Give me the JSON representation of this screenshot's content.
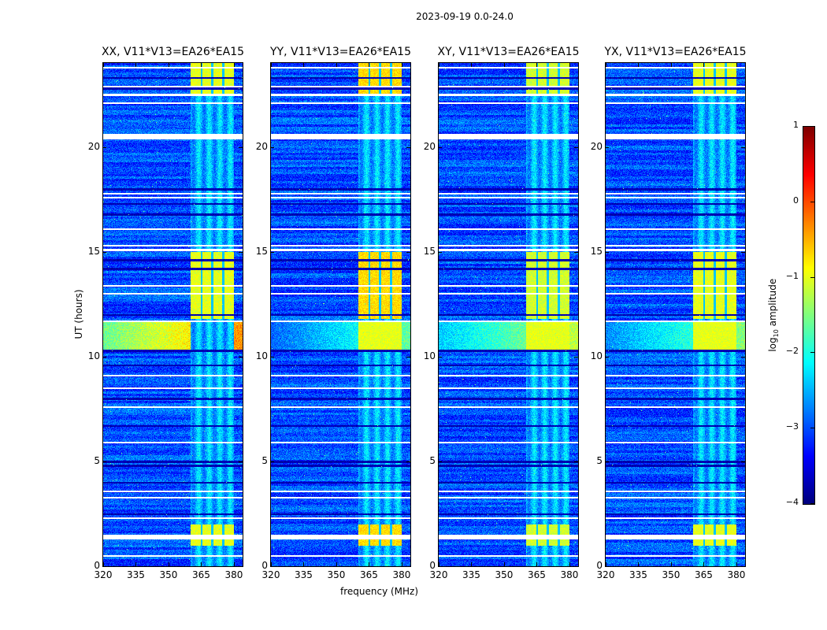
{
  "suptitle": "2023-09-19 0.0-24.0",
  "chart_data": {
    "type": "heatmap",
    "xlabel": "frequency (MHz)",
    "ylabel": "UT (hours)",
    "xlim": [
      320,
      384
    ],
    "ylim": [
      0,
      24
    ],
    "xticks": [
      "320",
      "335",
      "350",
      "365",
      "380"
    ],
    "xtick_values": [
      320,
      335,
      350,
      365,
      380
    ],
    "yticks": [
      "0",
      "5",
      "10",
      "15",
      "20"
    ],
    "ytick_values": [
      0,
      5,
      10,
      15,
      20
    ],
    "colorbar": {
      "label_prefix": "log",
      "label_sub": "10",
      "label_suffix": " amplitude",
      "range": [
        -4,
        1
      ],
      "ticks": [
        "1",
        "0",
        "−1",
        "−2",
        "−3",
        "−4"
      ],
      "tick_values": [
        1,
        0,
        -1,
        -2,
        -3,
        -4
      ],
      "colormap": "jet"
    },
    "panels": [
      {
        "title": "XX, V11*V13=EA26*EA15",
        "band_level": -1.0,
        "rfi_window_10_12": -1.6
      },
      {
        "title": "YY, V11*V13=EA26*EA15",
        "band_level": -0.7,
        "rfi_window_10_12": -2.9
      },
      {
        "title": "XY, V11*V13=EA26*EA15",
        "band_level": -1.1,
        "rfi_window_10_12": -2.4
      },
      {
        "title": "YX, V11*V13=EA26*EA15",
        "band_level": -1.0,
        "rfi_window_10_12": -2.7
      }
    ],
    "background_level": -3.0,
    "rfi_band_mhz": [
      360,
      380
    ],
    "subband_edges_mhz": [
      365,
      370,
      375
    ],
    "bright_time_windows_hours": [
      [
        1.0,
        2.0
      ],
      [
        11.8,
        15.0
      ],
      [
        22.5,
        24.0
      ]
    ],
    "flagged_white_rows_hours": [
      0.5,
      1.4,
      2.3,
      3.3,
      3.6,
      5.9,
      7.6,
      8.5,
      9.1,
      11.7,
      13.0,
      13.4,
      15.1,
      15.3,
      16.1,
      17.6,
      17.8,
      20.5,
      22.1,
      22.5,
      22.9,
      23.8
    ],
    "dark_rows_hours": [
      2.5,
      4.0,
      4.8,
      5.0,
      6.7,
      8.0,
      9.6,
      10.3,
      12.0,
      14.2,
      14.6,
      16.8,
      17.3,
      18.0,
      22.8,
      23.3
    ]
  }
}
